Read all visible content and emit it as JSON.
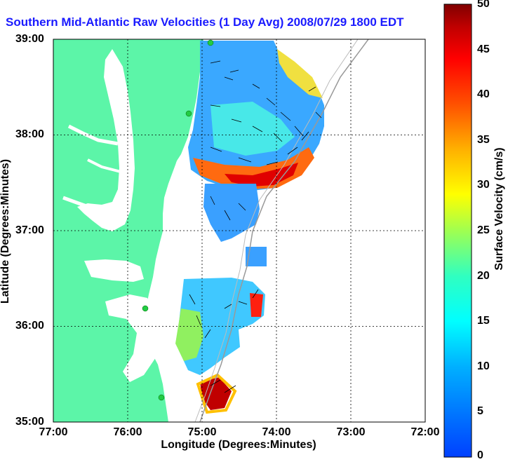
{
  "title": "Southern Mid-Atlantic Raw Velocities (1 Day Avg) 2008/07/29 1800 EDT",
  "x_axis": {
    "label": "Longitude (Degrees:Minutes)",
    "ticks": [
      "77:00",
      "76:00",
      "75:00",
      "74:00",
      "73:00",
      "72:00"
    ]
  },
  "y_axis": {
    "label": "Latitude (Degrees:Minutes)",
    "ticks": [
      "39:00",
      "38:00",
      "37:00",
      "36:00",
      "35:00"
    ]
  },
  "colorbar": {
    "label": "Surface Velocity (cm/s)",
    "ticks": [
      "50",
      "45",
      "40",
      "35",
      "30",
      "25",
      "20",
      "15",
      "10",
      "5",
      "0"
    ],
    "range": [
      0,
      50
    ],
    "colors": [
      "#0040ff",
      "#00b0ff",
      "#00ffff",
      "#30ffc0",
      "#a0ff50",
      "#ffff00",
      "#ffb000",
      "#ff5000",
      "#ff0000",
      "#c00000",
      "#800000"
    ]
  },
  "map": {
    "lon_range": [
      -77,
      -72
    ],
    "lat_range": [
      35,
      39
    ],
    "land_color": "#5cf5a8",
    "grid": true
  }
}
